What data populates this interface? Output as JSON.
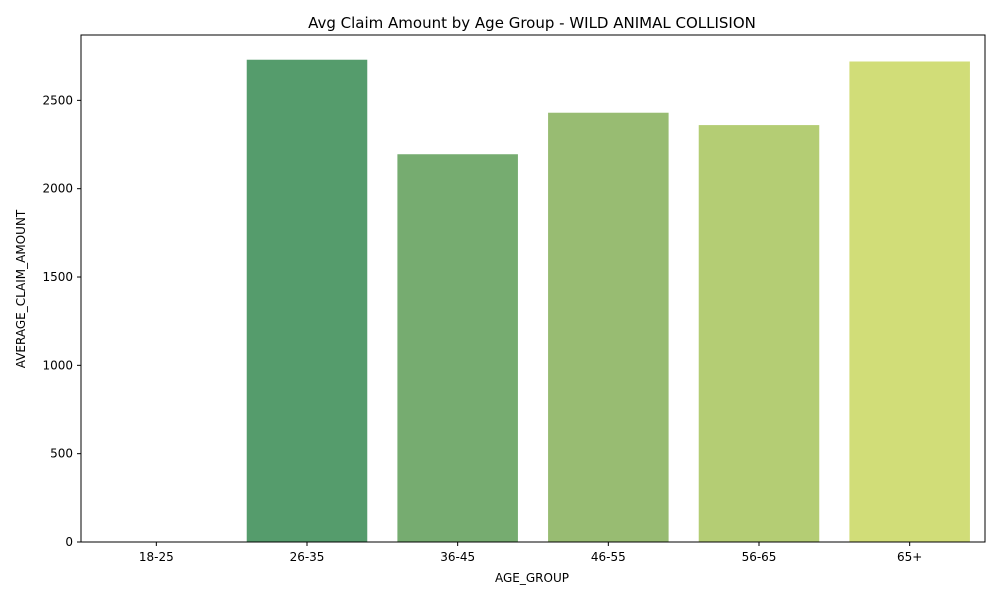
{
  "chart_data": {
    "type": "bar",
    "title": "Avg Claim Amount by Age Group - WILD ANIMAL COLLISION",
    "xlabel": "AGE_GROUP",
    "ylabel": "AVERAGE_CLAIM_AMOUNT",
    "categories": [
      "18-25",
      "26-35",
      "36-45",
      "46-55",
      "56-65",
      "65+"
    ],
    "values": [
      0,
      2730,
      2195,
      2430,
      2360,
      2720
    ],
    "colors": [
      "#3a8a5e",
      "#559c6c",
      "#76ac70",
      "#98bc72",
      "#b4cd74",
      "#d1dd78"
    ],
    "ylim": [
      0,
      2870
    ],
    "yticks": [
      0,
      500,
      1000,
      1500,
      2000,
      2500
    ],
    "grid": false,
    "legend": "none"
  }
}
